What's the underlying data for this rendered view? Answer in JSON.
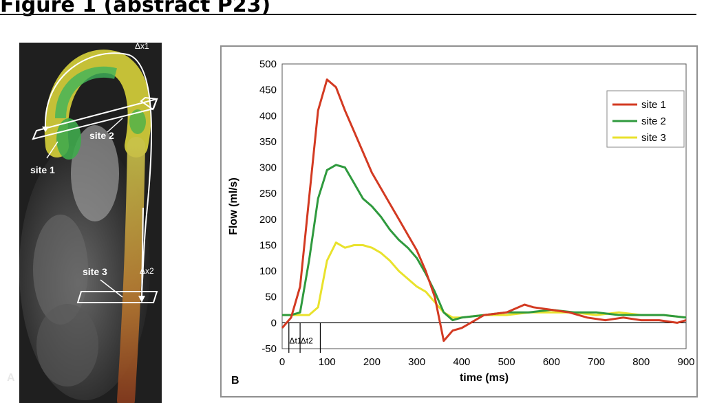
{
  "header": {
    "title": "Figure 1 (abstract P23)"
  },
  "panel_a": {
    "letter": "A",
    "labels": {
      "site1": "site 1",
      "site2": "site 2",
      "site3": "site 3",
      "dx1": "Δx1",
      "dx2": "Δx2"
    }
  },
  "panel_b": {
    "letter": "B"
  },
  "chart_data": {
    "type": "line",
    "xlabel": "time (ms)",
    "ylabel": "Flow (ml/s)",
    "xlim": [
      0,
      900
    ],
    "ylim": [
      -50,
      500
    ],
    "xticks": [
      0,
      100,
      200,
      300,
      400,
      500,
      600,
      700,
      800,
      900
    ],
    "yticks": [
      -50,
      0,
      50,
      100,
      150,
      200,
      250,
      300,
      350,
      400,
      450,
      500
    ],
    "grid": false,
    "legend_position": "top-right",
    "annotations": [
      "Δt1",
      "Δt2"
    ],
    "series": [
      {
        "name": "site 1",
        "color": "#d33a22",
        "x": [
          0,
          20,
          40,
          60,
          80,
          100,
          120,
          140,
          160,
          180,
          200,
          220,
          240,
          260,
          280,
          300,
          320,
          340,
          360,
          380,
          400,
          420,
          450,
          500,
          540,
          560,
          600,
          640,
          680,
          720,
          760,
          800,
          840,
          880,
          900
        ],
        "y": [
          -10,
          10,
          70,
          240,
          410,
          470,
          455,
          410,
          370,
          330,
          290,
          260,
          230,
          200,
          170,
          140,
          100,
          50,
          -35,
          -15,
          -10,
          0,
          15,
          20,
          35,
          30,
          25,
          20,
          10,
          5,
          10,
          5,
          5,
          0,
          5
        ]
      },
      {
        "name": "site 2",
        "color": "#2f9a3e",
        "x": [
          0,
          20,
          40,
          60,
          80,
          100,
          120,
          140,
          160,
          180,
          200,
          220,
          240,
          260,
          280,
          300,
          320,
          340,
          360,
          380,
          400,
          450,
          500,
          550,
          600,
          650,
          700,
          750,
          800,
          850,
          900
        ],
        "y": [
          15,
          15,
          20,
          120,
          240,
          295,
          305,
          300,
          270,
          240,
          225,
          205,
          180,
          160,
          145,
          125,
          95,
          60,
          20,
          5,
          10,
          15,
          20,
          20,
          25,
          20,
          20,
          15,
          15,
          15,
          10
        ]
      },
      {
        "name": "site 3",
        "color": "#e9e22c",
        "x": [
          0,
          20,
          40,
          60,
          80,
          100,
          120,
          140,
          160,
          180,
          200,
          220,
          240,
          260,
          280,
          300,
          320,
          340,
          360,
          380,
          400,
          450,
          500,
          550,
          600,
          650,
          700,
          750,
          800,
          850,
          900
        ],
        "y": [
          15,
          15,
          15,
          15,
          30,
          120,
          155,
          145,
          150,
          150,
          145,
          135,
          120,
          100,
          85,
          70,
          60,
          40,
          20,
          10,
          10,
          15,
          15,
          20,
          20,
          20,
          15,
          20,
          15,
          15,
          10
        ]
      }
    ]
  }
}
